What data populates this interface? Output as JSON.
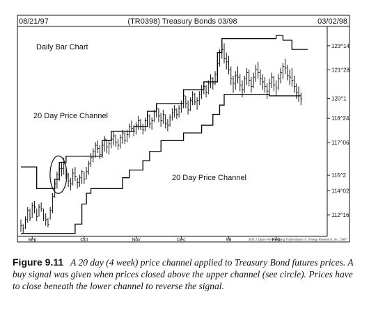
{
  "header": {
    "start_date": "08/21/97",
    "title": "(TR0398) Treasury Bonds 03/98",
    "end_date": "03/02/98"
  },
  "annotations": {
    "chart_label": "Daily Bar Chart",
    "upper_channel_label": "20 Day Price Channel",
    "lower_channel_label": "20 Day Price Channel"
  },
  "credit": "3/05  2:18pm Printed using TradeStation © Omega Research, Inc. 1997",
  "caption": {
    "label": "Figure 9.11",
    "text": "A 20 day (4 week) price channel applied to Treasury Bond futures prices. A buy signal was given when prices closed above the upper channel (see circle). Prices have to close beneath the lower channel to reverse the signal."
  },
  "chart_data": {
    "type": "bar",
    "title": "(TR0398) Treasury Bonds 03/98",
    "y_axis_position": "right",
    "ylim": [
      111.2,
      124.6
    ],
    "y_ticks": [
      {
        "value": 112.5,
        "label": "112^16"
      },
      {
        "value": 114.0625,
        "label": "114^02"
      },
      {
        "value": 115.0625,
        "label": "115^2"
      },
      {
        "value": 117.1875,
        "label": "117^06"
      },
      {
        "value": 118.75,
        "label": "118^24"
      },
      {
        "value": 120.03,
        "label": "120^1"
      },
      {
        "value": 121.875,
        "label": "121^28"
      },
      {
        "value": 123.4375,
        "label": "123^14"
      }
    ],
    "x_labels": [
      {
        "day": 5,
        "label": "Sep"
      },
      {
        "day": 28,
        "label": "Oct"
      },
      {
        "day": 51,
        "label": "Nov"
      },
      {
        "day": 71,
        "label": "Dec"
      },
      {
        "day": 92,
        "label": "98"
      },
      {
        "day": 113,
        "label": "Feb"
      }
    ],
    "x_range": [
      0,
      135
    ],
    "highlight": {
      "type": "circle",
      "day": 16,
      "price": 115.1
    },
    "series": [
      {
        "name": "Daily Bar Chart",
        "kind": "ohlc"
      },
      {
        "name": "20 Day Price Channel",
        "kind": "upper_channel",
        "points": [
          [
            0,
            115.6
          ],
          [
            7,
            115.6
          ],
          [
            7,
            114.2
          ],
          [
            15,
            114.2
          ],
          [
            15,
            114.8
          ],
          [
            17,
            114.8
          ],
          [
            17,
            115.9
          ],
          [
            20,
            115.9
          ],
          [
            20,
            116.3
          ],
          [
            36,
            116.3
          ],
          [
            36,
            117.3
          ],
          [
            40,
            117.3
          ],
          [
            40,
            117.9
          ],
          [
            50,
            117.9
          ],
          [
            50,
            118.2
          ],
          [
            56,
            118.2
          ],
          [
            56,
            119.2
          ],
          [
            60,
            119.2
          ],
          [
            60,
            119.7
          ],
          [
            72,
            119.7
          ],
          [
            72,
            120.6
          ],
          [
            81,
            120.6
          ],
          [
            81,
            121.1
          ],
          [
            87,
            121.1
          ],
          [
            87,
            123.0
          ],
          [
            89,
            123.0
          ],
          [
            89,
            123.9
          ],
          [
            113,
            123.9
          ],
          [
            113,
            124.1
          ],
          [
            116,
            124.1
          ],
          [
            116,
            123.8
          ],
          [
            120,
            123.8
          ],
          [
            120,
            123.2
          ],
          [
            127,
            123.2
          ]
        ]
      },
      {
        "name": "20 Day Price Channel",
        "kind": "lower_channel",
        "points": [
          [
            0,
            111.3
          ],
          [
            24,
            111.3
          ],
          [
            24,
            111.9
          ],
          [
            27,
            111.9
          ],
          [
            27,
            113.2
          ],
          [
            29,
            113.2
          ],
          [
            29,
            113.9
          ],
          [
            31,
            113.9
          ],
          [
            31,
            114.2
          ],
          [
            45,
            114.2
          ],
          [
            45,
            114.9
          ],
          [
            48,
            114.9
          ],
          [
            48,
            115.4
          ],
          [
            54,
            115.4
          ],
          [
            54,
            116.0
          ],
          [
            57,
            116.0
          ],
          [
            57,
            116.6
          ],
          [
            62,
            116.6
          ],
          [
            62,
            117.3
          ],
          [
            72,
            117.3
          ],
          [
            72,
            117.8
          ],
          [
            80,
            117.8
          ],
          [
            80,
            118.3
          ],
          [
            85,
            118.3
          ],
          [
            85,
            119.0
          ],
          [
            88,
            119.0
          ],
          [
            88,
            119.6
          ],
          [
            90,
            119.6
          ],
          [
            90,
            120.3
          ],
          [
            110,
            120.3
          ],
          [
            110,
            120.2
          ],
          [
            124,
            120.2
          ]
        ]
      }
    ],
    "ohlc": [
      [
        0,
        112.2,
        111.4,
        111.8
      ],
      [
        1,
        111.9,
        111.3,
        111.6
      ],
      [
        2,
        112.4,
        111.6,
        112.2
      ],
      [
        3,
        113.0,
        112.0,
        112.8
      ],
      [
        4,
        112.9,
        112.1,
        112.3
      ],
      [
        5,
        113.3,
        112.3,
        113.1
      ],
      [
        6,
        113.4,
        112.6,
        113.0
      ],
      [
        7,
        112.9,
        112.1,
        112.4
      ],
      [
        8,
        113.2,
        112.4,
        113.0
      ],
      [
        9,
        113.3,
        112.7,
        112.9
      ],
      [
        10,
        112.9,
        112.1,
        112.3
      ],
      [
        11,
        112.6,
        111.8,
        112.2
      ],
      [
        12,
        112.3,
        111.7,
        111.9
      ],
      [
        13,
        113.0,
        112.2,
        112.8
      ],
      [
        14,
        113.9,
        112.6,
        113.7
      ],
      [
        15,
        114.6,
        113.6,
        114.5
      ],
      [
        16,
        115.3,
        114.2,
        115.1
      ],
      [
        17,
        115.6,
        114.7,
        115.5
      ],
      [
        18,
        115.9,
        115.0,
        115.5
      ],
      [
        19,
        116.2,
        115.1,
        115.8
      ],
      [
        20,
        115.6,
        114.8,
        115.1
      ],
      [
        21,
        115.2,
        114.3,
        114.7
      ],
      [
        22,
        114.9,
        114.1,
        114.5
      ],
      [
        23,
        115.5,
        114.4,
        115.2
      ],
      [
        24,
        115.6,
        114.7,
        115.0
      ],
      [
        25,
        114.9,
        114.2,
        114.6
      ],
      [
        26,
        115.1,
        114.3,
        114.9
      ],
      [
        27,
        115.4,
        114.5,
        115.3
      ],
      [
        28,
        115.3,
        114.5,
        114.8
      ],
      [
        29,
        115.6,
        114.8,
        115.3
      ],
      [
        30,
        116.0,
        115.1,
        115.8
      ],
      [
        31,
        116.5,
        115.6,
        116.2
      ],
      [
        32,
        116.8,
        115.9,
        116.6
      ],
      [
        33,
        117.2,
        116.2,
        117.0
      ],
      [
        34,
        117.3,
        116.5,
        116.8
      ],
      [
        35,
        117.0,
        116.1,
        116.4
      ],
      [
        36,
        117.2,
        116.2,
        117.0
      ],
      [
        37,
        117.6,
        116.6,
        117.4
      ],
      [
        38,
        117.4,
        116.5,
        116.9
      ],
      [
        39,
        117.3,
        116.4,
        117.1
      ],
      [
        40,
        117.6,
        116.8,
        117.4
      ],
      [
        41,
        117.9,
        117.0,
        117.6
      ],
      [
        42,
        117.7,
        116.9,
        117.2
      ],
      [
        43,
        117.4,
        116.7,
        117.0
      ],
      [
        44,
        117.7,
        116.8,
        117.5
      ],
      [
        45,
        118.0,
        117.1,
        117.8
      ],
      [
        46,
        117.9,
        117.1,
        117.3
      ],
      [
        47,
        118.0,
        117.2,
        117.7
      ],
      [
        48,
        118.4,
        117.5,
        118.2
      ],
      [
        49,
        118.6,
        117.9,
        118.1
      ],
      [
        50,
        118.3,
        117.6,
        117.9
      ],
      [
        51,
        118.5,
        117.7,
        118.3
      ],
      [
        52,
        118.9,
        118.0,
        118.6
      ],
      [
        53,
        118.7,
        118.0,
        118.2
      ],
      [
        54,
        118.4,
        117.7,
        118.0
      ],
      [
        55,
        118.8,
        117.9,
        118.6
      ],
      [
        56,
        119.1,
        118.3,
        118.9
      ],
      [
        57,
        119.0,
        118.1,
        118.4
      ],
      [
        58,
        118.8,
        118.0,
        118.6
      ],
      [
        59,
        119.3,
        118.5,
        119.1
      ],
      [
        60,
        119.6,
        118.8,
        119.4
      ],
      [
        61,
        119.4,
        118.5,
        118.9
      ],
      [
        62,
        119.1,
        118.2,
        118.6
      ],
      [
        63,
        119.3,
        118.4,
        119.0
      ],
      [
        64,
        119.0,
        118.1,
        118.4
      ],
      [
        65,
        118.7,
        117.9,
        118.3
      ],
      [
        66,
        119.0,
        118.2,
        118.8
      ],
      [
        67,
        119.4,
        118.6,
        119.1
      ],
      [
        68,
        119.6,
        118.8,
        119.3
      ],
      [
        69,
        119.4,
        118.7,
        119.0
      ],
      [
        70,
        119.6,
        118.8,
        119.4
      ],
      [
        71,
        119.9,
        119.1,
        119.7
      ],
      [
        72,
        120.4,
        119.4,
        120.2
      ],
      [
        73,
        120.2,
        119.4,
        119.7
      ],
      [
        74,
        119.9,
        119.0,
        119.3
      ],
      [
        75,
        120.1,
        119.2,
        119.9
      ],
      [
        76,
        120.5,
        119.6,
        120.3
      ],
      [
        77,
        120.4,
        119.6,
        119.8
      ],
      [
        78,
        120.1,
        119.3,
        119.9
      ],
      [
        79,
        120.5,
        119.6,
        120.3
      ],
      [
        80,
        120.9,
        120.0,
        120.6
      ],
      [
        81,
        121.1,
        120.3,
        120.8
      ],
      [
        82,
        120.9,
        120.1,
        120.4
      ],
      [
        83,
        121.2,
        120.3,
        121.0
      ],
      [
        84,
        121.6,
        120.7,
        121.3
      ],
      [
        85,
        121.4,
        120.6,
        121.0
      ],
      [
        86,
        121.8,
        120.9,
        121.6
      ],
      [
        87,
        122.5,
        121.4,
        122.3
      ],
      [
        88,
        123.2,
        122.1,
        123.0
      ],
      [
        89,
        123.8,
        122.6,
        123.2
      ],
      [
        90,
        123.6,
        122.3,
        122.6
      ],
      [
        91,
        123.0,
        121.9,
        122.4
      ],
      [
        92,
        122.8,
        121.6,
        121.9
      ],
      [
        93,
        122.1,
        120.9,
        121.3
      ],
      [
        94,
        121.5,
        120.4,
        121.0
      ],
      [
        95,
        121.8,
        120.6,
        121.5
      ],
      [
        96,
        122.1,
        121.0,
        121.4
      ],
      [
        97,
        121.6,
        120.5,
        120.9
      ],
      [
        98,
        121.2,
        120.1,
        120.6
      ],
      [
        99,
        121.5,
        120.4,
        121.3
      ],
      [
        100,
        122.0,
        120.9,
        121.7
      ],
      [
        101,
        121.9,
        120.8,
        121.2
      ],
      [
        102,
        121.4,
        120.4,
        120.8
      ],
      [
        103,
        121.7,
        120.7,
        121.4
      ],
      [
        104,
        122.2,
        121.1,
        121.9
      ],
      [
        105,
        122.4,
        121.3,
        121.7
      ],
      [
        106,
        121.9,
        120.9,
        121.3
      ],
      [
        107,
        121.6,
        120.6,
        121.1
      ],
      [
        108,
        121.4,
        120.4,
        120.8
      ],
      [
        109,
        121.0,
        120.0,
        120.5
      ],
      [
        110,
        121.3,
        120.2,
        121.0
      ],
      [
        111,
        121.7,
        120.7,
        121.4
      ],
      [
        112,
        121.5,
        120.5,
        120.9
      ],
      [
        113,
        121.2,
        120.2,
        120.7
      ],
      [
        114,
        121.6,
        120.6,
        121.3
      ],
      [
        115,
        122.0,
        121.0,
        121.7
      ],
      [
        116,
        122.3,
        121.3,
        122.1
      ],
      [
        117,
        122.6,
        121.6,
        122.0
      ],
      [
        118,
        122.2,
        121.2,
        121.5
      ],
      [
        119,
        121.9,
        120.9,
        121.4
      ],
      [
        120,
        122.0,
        120.8,
        121.2
      ],
      [
        121,
        121.5,
        120.4,
        120.8
      ],
      [
        122,
        121.0,
        120.0,
        120.4
      ],
      [
        123,
        120.8,
        119.8,
        120.2
      ],
      [
        124,
        120.4,
        119.6,
        120.0
      ]
    ]
  }
}
